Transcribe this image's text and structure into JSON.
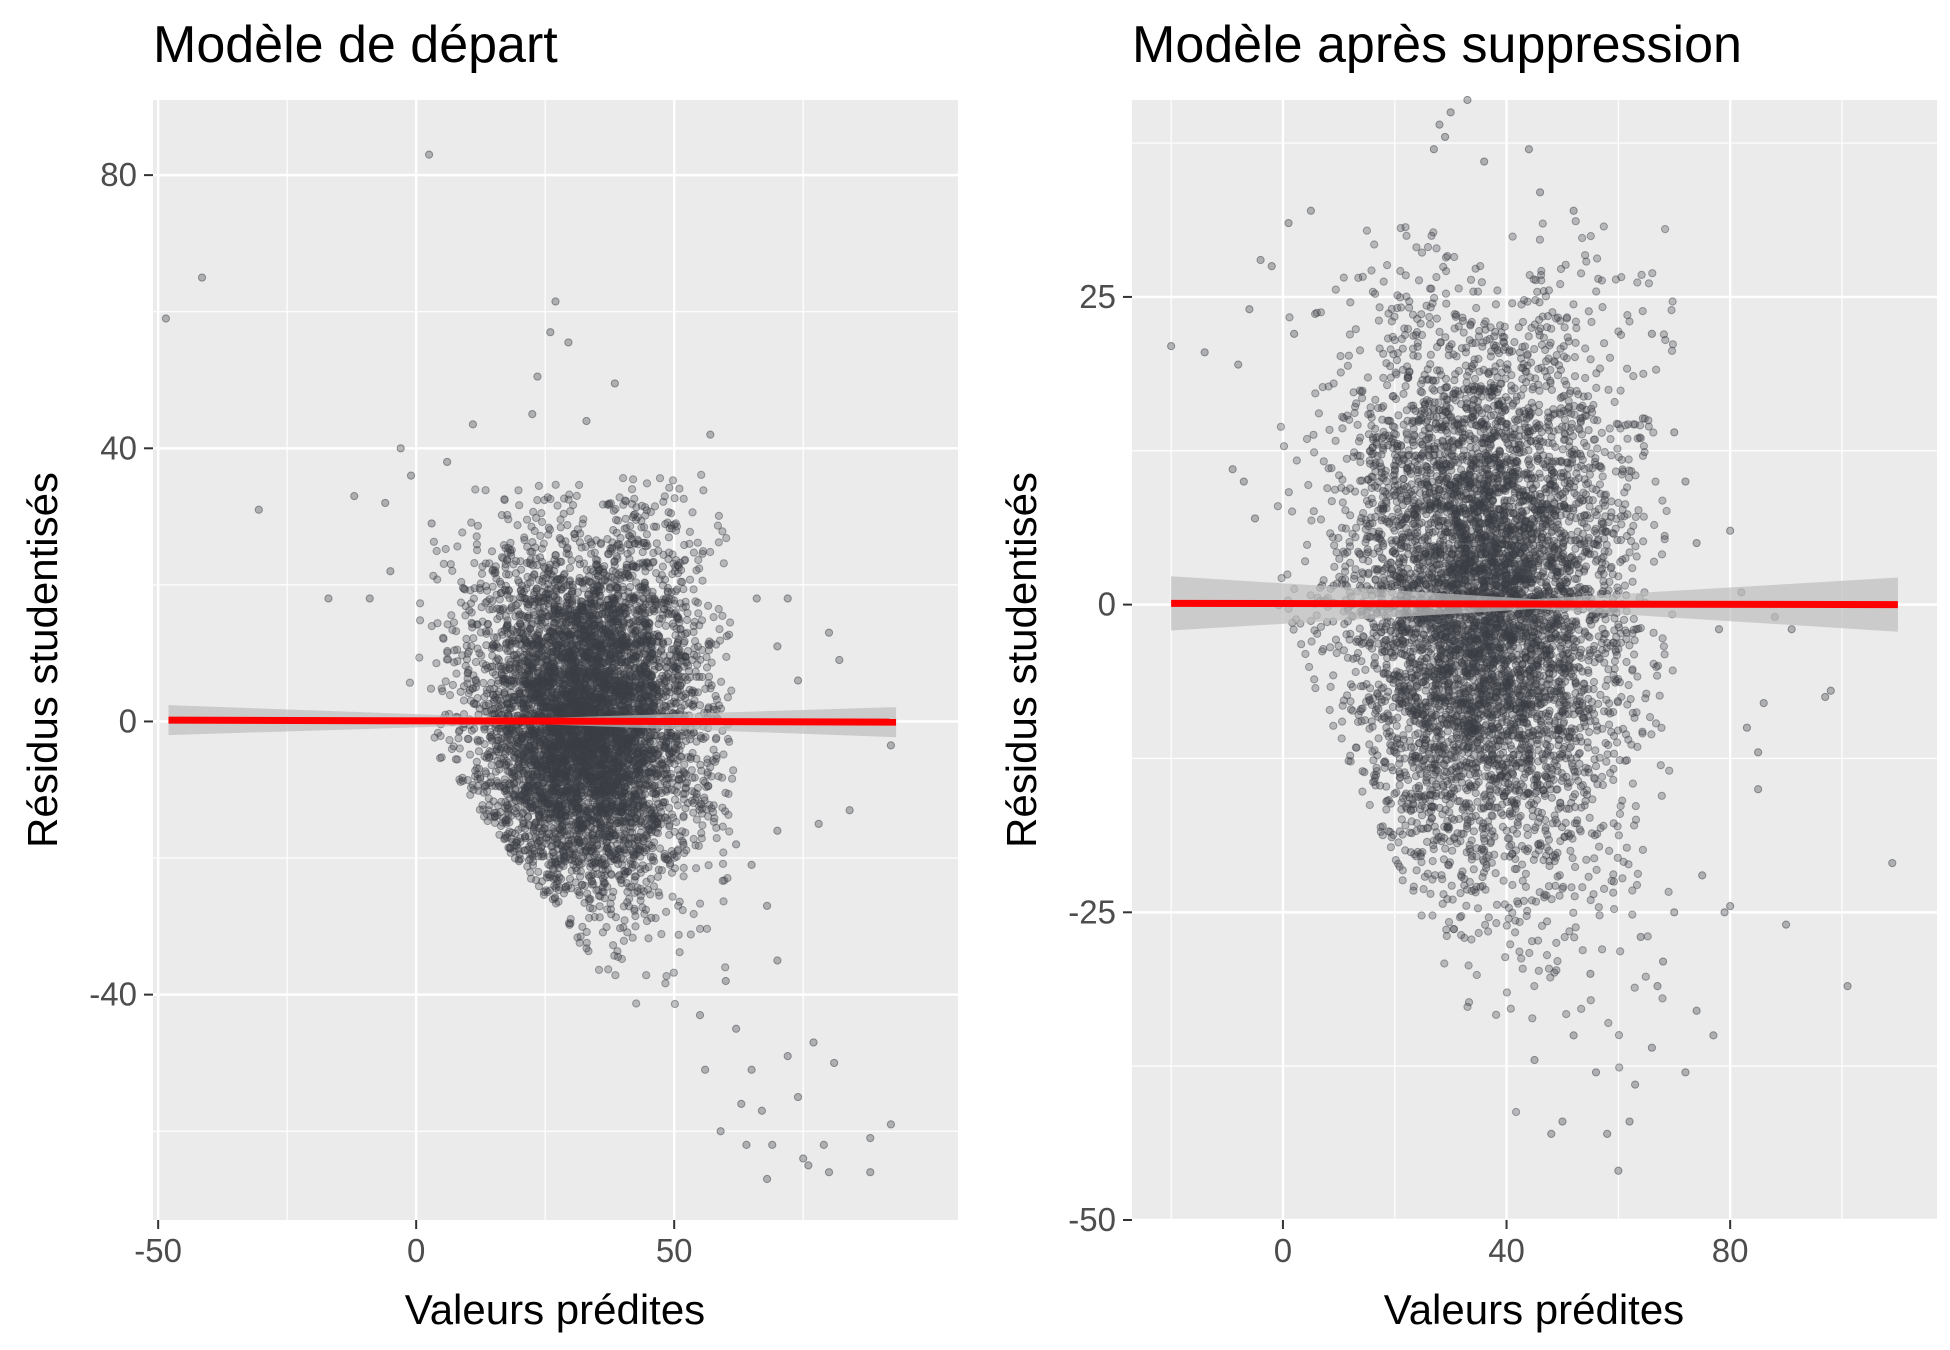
{
  "chart_data": [
    {
      "type": "scatter",
      "title": "Modèle de départ",
      "xlabel": "Valeurs prédites",
      "ylabel": "Résidus studentisés",
      "xlim": [
        -51,
        105
      ],
      "ylim": [
        -73,
        91
      ],
      "x_ticks": [
        -50,
        0,
        50
      ],
      "x_tick_labels": [
        "-50",
        "0",
        "50"
      ],
      "y_ticks": [
        -40,
        0,
        40,
        80
      ],
      "y_tick_labels": [
        "-40",
        "0",
        "40",
        "80"
      ],
      "grid": true,
      "point_color": "#3b3f45",
      "line_color": "#ff0000",
      "band_color": "#bdbdbd",
      "fit_line": {
        "x": [
          -48,
          93
        ],
        "y": [
          0.2,
          -0.1
        ]
      },
      "cloud": {
        "x_mean": 33,
        "x_sd": 11,
        "residual_sd": 14,
        "n": 6500
      },
      "outliers": [
        [
          -48.5,
          59
        ],
        [
          -41.5,
          65
        ],
        [
          -30.5,
          31
        ],
        [
          2.5,
          83
        ],
        [
          27,
          61.5
        ],
        [
          26,
          57
        ],
        [
          29.5,
          55.5
        ],
        [
          23.5,
          50.5
        ],
        [
          38.5,
          49.5
        ],
        [
          11,
          43.5
        ],
        [
          22.5,
          45
        ],
        [
          33,
          44
        ],
        [
          57,
          42
        ],
        [
          -12,
          33
        ],
        [
          -6,
          32
        ],
        [
          -1,
          36
        ],
        [
          -3,
          40
        ],
        [
          6,
          38
        ],
        [
          3,
          29
        ],
        [
          -17,
          18
        ],
        [
          -9,
          18
        ],
        [
          -5,
          22
        ],
        [
          66,
          18
        ],
        [
          72,
          18
        ],
        [
          80,
          13
        ],
        [
          82,
          9
        ],
        [
          74,
          6
        ],
        [
          70,
          11
        ],
        [
          92,
          -3.5
        ],
        [
          78,
          -15
        ],
        [
          84,
          -13
        ],
        [
          70,
          -16
        ],
        [
          62,
          -18
        ],
        [
          65,
          -21
        ],
        [
          68,
          -27
        ],
        [
          60,
          -38
        ],
        [
          62,
          -45
        ],
        [
          65,
          -51
        ],
        [
          67,
          -57
        ],
        [
          69,
          -62
        ],
        [
          72,
          -49
        ],
        [
          74,
          -55
        ],
        [
          75,
          -64
        ],
        [
          76,
          -65
        ],
        [
          79,
          -62
        ],
        [
          80,
          -66
        ],
        [
          81,
          -50
        ],
        [
          88,
          -61
        ],
        [
          88,
          -66
        ],
        [
          92,
          -59
        ],
        [
          64,
          -62
        ],
        [
          59,
          -60
        ],
        [
          68,
          -67
        ],
        [
          77,
          -47
        ],
        [
          56,
          -51
        ],
        [
          63,
          -56
        ],
        [
          70,
          -35
        ],
        [
          55,
          -43
        ]
      ]
    },
    {
      "type": "scatter",
      "title": "Modèle après suppression",
      "xlabel": "Valeurs prédites",
      "ylabel": "Résidus studentisés",
      "xlim": [
        -27,
        117
      ],
      "ylim": [
        -50,
        41
      ],
      "x_ticks": [
        0,
        40,
        80
      ],
      "x_tick_labels": [
        "0",
        "40",
        "80"
      ],
      "y_ticks": [
        -50,
        -25,
        0,
        25
      ],
      "y_tick_labels": [
        "-50",
        "-25",
        "0",
        "25"
      ],
      "grid": true,
      "point_color": "#3b3f45",
      "line_color": "#ff0000",
      "band_color": "#bdbdbd",
      "fit_line": {
        "x": [
          -20,
          110
        ],
        "y": [
          0.1,
          0.0
        ]
      },
      "cloud": {
        "x_mean": 36,
        "x_sd": 13,
        "residual_sd": 12,
        "n": 6500
      },
      "outliers": [
        [
          -20,
          21
        ],
        [
          -14,
          20.5
        ],
        [
          -8,
          19.5
        ],
        [
          -6,
          24
        ],
        [
          -4,
          28
        ],
        [
          -2,
          27.5
        ],
        [
          1,
          31
        ],
        [
          5,
          32
        ],
        [
          2,
          22
        ],
        [
          -9,
          11
        ],
        [
          -7,
          10
        ],
        [
          -5,
          7
        ],
        [
          28,
          39
        ],
        [
          30,
          40
        ],
        [
          33,
          41
        ],
        [
          29,
          38
        ],
        [
          36,
          36
        ],
        [
          27,
          37
        ],
        [
          44,
          37
        ],
        [
          46,
          33.5
        ],
        [
          52,
          32
        ],
        [
          66,
          22
        ],
        [
          70,
          14
        ],
        [
          72,
          10
        ],
        [
          74,
          5
        ],
        [
          78,
          -2
        ],
        [
          80,
          6
        ],
        [
          82,
          1
        ],
        [
          85,
          -12
        ],
        [
          88,
          -1
        ],
        [
          91,
          -2
        ],
        [
          97,
          -7.5
        ],
        [
          98,
          -7
        ],
        [
          109,
          -21
        ],
        [
          101,
          -31
        ],
        [
          90,
          -26
        ],
        [
          83,
          -10
        ],
        [
          80,
          -24.5
        ],
        [
          79,
          -25
        ],
        [
          77,
          -35
        ],
        [
          74,
          -33
        ],
        [
          72,
          -38
        ],
        [
          70,
          -25
        ],
        [
          68,
          -29
        ],
        [
          66,
          -36
        ],
        [
          62,
          -42
        ],
        [
          60,
          -46
        ],
        [
          58,
          -43
        ],
        [
          56,
          -38
        ],
        [
          55,
          -30
        ],
        [
          50,
          -42
        ],
        [
          48,
          -43
        ],
        [
          45,
          -37
        ],
        [
          52,
          -35
        ],
        [
          63,
          -39
        ],
        [
          75,
          -22
        ],
        [
          85,
          -15
        ],
        [
          86,
          -8
        ],
        [
          67,
          -31
        ],
        [
          64,
          -27
        ]
      ]
    }
  ]
}
